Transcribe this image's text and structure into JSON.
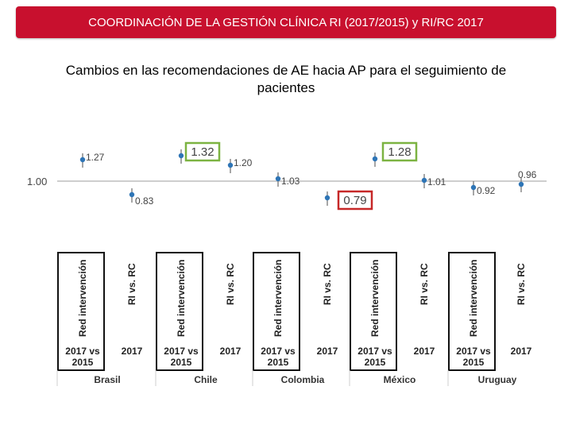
{
  "header": {
    "title": "COORDINACIÓN DE LA GESTIÓN CLÍNICA RI (2017/2015) y RI/RC 2017"
  },
  "chart_data": {
    "type": "scatter",
    "title": "Cambios en las recomendaciones de AE hacia AP para el seguimiento de pacientes",
    "baseline_label": "1.00",
    "baseline": 1.0,
    "categories": [
      {
        "country": "Brasil",
        "rot_label": "Red intervención",
        "year_label": "2017 vs 2015",
        "value": 1.27,
        "label": "1.27",
        "highlight": ""
      },
      {
        "country": "Brasil",
        "rot_label": "RI vs. RC",
        "year_label": "2017",
        "value": 0.83,
        "label": "0.83",
        "highlight": ""
      },
      {
        "country": "Chile",
        "rot_label": "Red intervención",
        "year_label": "2017 vs 2015",
        "value": 1.32,
        "label": "1.32",
        "highlight": "green"
      },
      {
        "country": "Chile",
        "rot_label": "RI vs. RC",
        "year_label": "2017",
        "value": 1.2,
        "label": "1.20",
        "highlight": ""
      },
      {
        "country": "Colombia",
        "rot_label": "Red intervención",
        "year_label": "2017 vs 2015",
        "value": 1.03,
        "label": "1.03",
        "highlight": ""
      },
      {
        "country": "Colombia",
        "rot_label": "RI vs. RC",
        "year_label": "2017",
        "value": 0.79,
        "label": "0.79",
        "highlight": "red"
      },
      {
        "country": "México",
        "rot_label": "Red intervención",
        "year_label": "2017 vs 2015",
        "value": 1.28,
        "label": "1.28",
        "highlight": "green"
      },
      {
        "country": "México",
        "rot_label": "RI vs. RC",
        "year_label": "2017",
        "value": 1.01,
        "label": "1.01",
        "highlight": ""
      },
      {
        "country": "Uruguay",
        "rot_label": "Red intervención",
        "year_label": "2017 vs 2015",
        "value": 0.92,
        "label": "0.92",
        "highlight": ""
      },
      {
        "country": "Uruguay",
        "rot_label": "RI vs. RC",
        "year_label": "2017",
        "value": 0.96,
        "label": "0.96",
        "highlight": ""
      }
    ],
    "countries": [
      "Brasil",
      "Chile",
      "Colombia",
      "México",
      "Uruguay"
    ],
    "colors": {
      "point": "#2e75b6",
      "green_box": "#7cb342",
      "red_box": "#c62828",
      "header": "#c8102e"
    }
  }
}
